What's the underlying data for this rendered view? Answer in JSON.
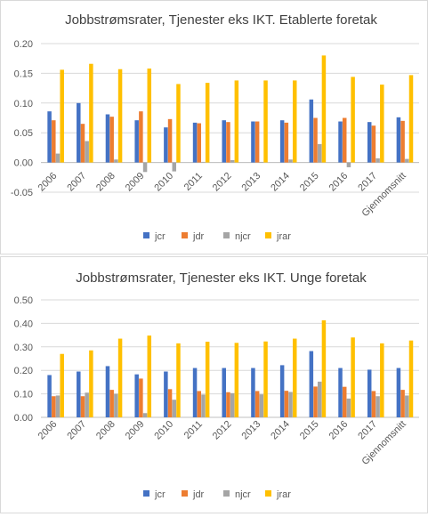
{
  "colors": {
    "jcr": "#4472c4",
    "jdr": "#ed7d31",
    "njcr": "#a5a5a5",
    "jrar": "#ffc000",
    "grid": "#d9d9d9",
    "text": "#595959",
    "title": "#404040"
  },
  "chart_data": [
    {
      "type": "bar",
      "title": "Jobbstrømsrater, Tjenester eks IKT. Etablerte foretak",
      "categories": [
        "2006",
        "2007",
        "2008",
        "2009",
        "2010",
        "2011",
        "2012",
        "2013",
        "2014",
        "2015",
        "2016",
        "2017",
        "Gjennomsnitt"
      ],
      "yticks": [
        "-0.05",
        "0.00",
        "0.05",
        "0.10",
        "0.15",
        "0.20"
      ],
      "ylim": [
        -0.05,
        0.2
      ],
      "legend_position": "bottom",
      "grid": true,
      "series": [
        {
          "name": "jcr",
          "color": "#4472c4",
          "values": [
            0.086,
            0.1,
            0.081,
            0.071,
            0.059,
            0.067,
            0.071,
            0.069,
            0.071,
            0.106,
            0.069,
            0.068,
            0.076
          ]
        },
        {
          "name": "jdr",
          "color": "#ed7d31",
          "values": [
            0.071,
            0.065,
            0.077,
            0.086,
            0.073,
            0.066,
            0.068,
            0.069,
            0.067,
            0.075,
            0.075,
            0.062,
            0.07
          ]
        },
        {
          "name": "njcr",
          "color": "#a5a5a5",
          "values": [
            0.015,
            0.036,
            0.005,
            -0.016,
            -0.015,
            0.001,
            0.004,
            0.001,
            0.005,
            0.031,
            -0.008,
            0.007,
            0.006
          ]
        },
        {
          "name": "jrar",
          "color": "#ffc000",
          "values": [
            0.156,
            0.166,
            0.157,
            0.158,
            0.132,
            0.134,
            0.138,
            0.138,
            0.138,
            0.18,
            0.144,
            0.131,
            0.147
          ]
        }
      ]
    },
    {
      "type": "bar",
      "title": "Jobbstrømsrater, Tjenester eks IKT. Unge foretak",
      "categories": [
        "2006",
        "2007",
        "2008",
        "2009",
        "2010",
        "2011",
        "2012",
        "2013",
        "2014",
        "2015",
        "2016",
        "2017",
        "Gjennomsnitt"
      ],
      "yticks": [
        "0.00",
        "0.10",
        "0.20",
        "0.30",
        "0.40",
        "0.50"
      ],
      "ylim": [
        0,
        0.5
      ],
      "legend_position": "bottom",
      "grid": true,
      "series": [
        {
          "name": "jcr",
          "color": "#4472c4",
          "values": [
            0.18,
            0.195,
            0.218,
            0.183,
            0.195,
            0.21,
            0.21,
            0.21,
            0.222,
            0.282,
            0.21,
            0.203,
            0.21
          ]
        },
        {
          "name": "jdr",
          "color": "#ed7d31",
          "values": [
            0.09,
            0.09,
            0.117,
            0.165,
            0.12,
            0.112,
            0.107,
            0.112,
            0.113,
            0.131,
            0.13,
            0.112,
            0.117
          ]
        },
        {
          "name": "njcr",
          "color": "#a5a5a5",
          "values": [
            0.093,
            0.105,
            0.1,
            0.018,
            0.075,
            0.097,
            0.103,
            0.098,
            0.108,
            0.152,
            0.08,
            0.09,
            0.093
          ]
        },
        {
          "name": "jrar",
          "color": "#ffc000",
          "values": [
            0.27,
            0.285,
            0.335,
            0.348,
            0.315,
            0.322,
            0.317,
            0.323,
            0.335,
            0.413,
            0.34,
            0.315,
            0.327
          ]
        }
      ]
    }
  ]
}
